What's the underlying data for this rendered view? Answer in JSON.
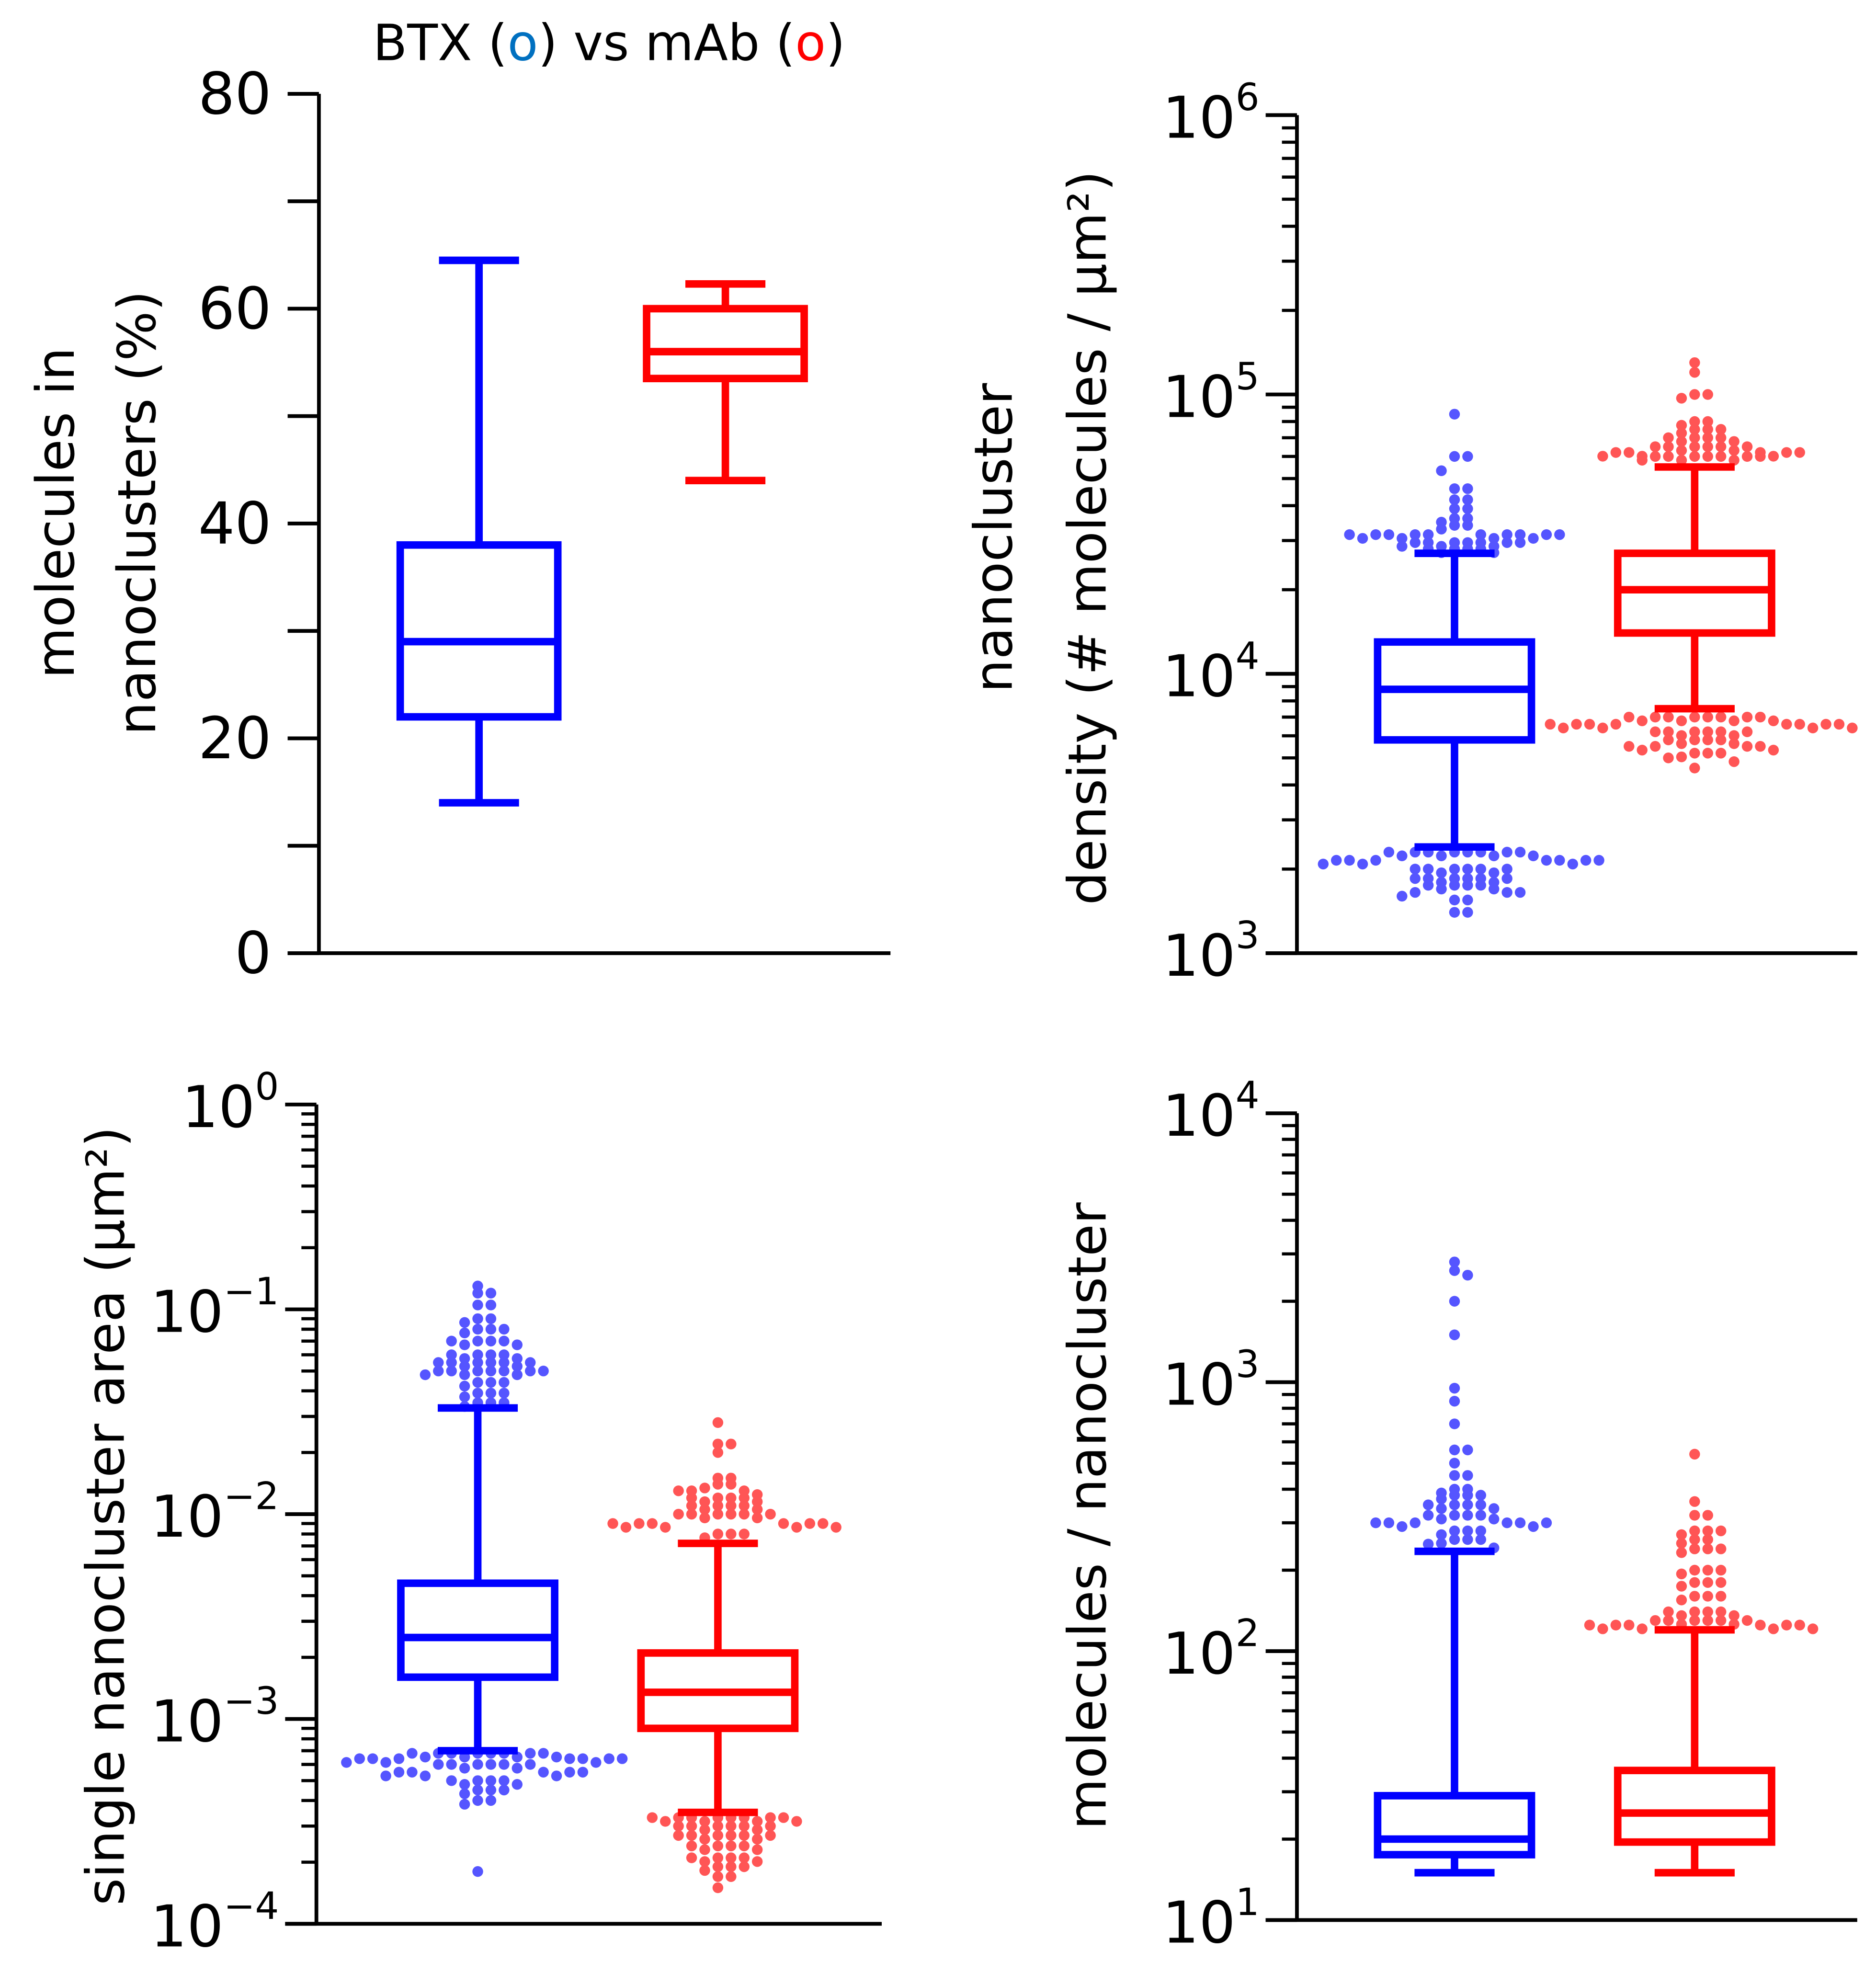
{
  "title": {
    "prefix": "BTX (",
    "o1": "o",
    "mid": ") vs mAb (",
    "o2": "o",
    "suffix": ")"
  },
  "colors": {
    "btx": "#0000FF",
    "mab": "#FF0000",
    "btx_dot": "#5555FF",
    "mab_dot": "#FF5555",
    "title_o_blue": "#0070C0"
  },
  "chart_data": [
    {
      "id": "A",
      "type": "box",
      "scale": "linear",
      "ylabel_lines": [
        "molecules in",
        "nanoclusters (%)"
      ],
      "ylim": [
        0,
        80
      ],
      "ticks": [
        0,
        20,
        40,
        60,
        80
      ],
      "minor_ticks": [
        10,
        30,
        50,
        70
      ],
      "series": [
        {
          "name": "BTX",
          "whisker_low": 14,
          "q1": 22,
          "median": 29,
          "q3": 38,
          "whisker_high": 64.5,
          "outliers": []
        },
        {
          "name": "mAb",
          "whisker_low": 44,
          "q1": 53.5,
          "median": 56,
          "q3": 60,
          "whisker_high": 62.3,
          "outliers": []
        }
      ]
    },
    {
      "id": "B",
      "type": "box",
      "scale": "log",
      "ylabel_lines": [
        "nanocluster",
        "density (# molecules / µm²)"
      ],
      "ylim_exp": [
        3,
        6
      ],
      "tick_exps": [
        "3",
        "4",
        "5",
        "6"
      ],
      "series": [
        {
          "name": "BTX",
          "whisker_low": 2400,
          "q1": 5800,
          "median": 8800,
          "q3": 13000,
          "whisker_high": 27000,
          "outliers": [
            [
              85000,
              1
            ],
            [
              60000,
              2
            ],
            [
              55000,
              1
            ],
            [
              46000,
              2
            ],
            [
              42000,
              2
            ],
            [
              39000,
              2
            ],
            [
              36000,
              3
            ],
            [
              34000,
              3
            ],
            [
              31500,
              14
            ],
            [
              29500,
              10
            ],
            [
              28000,
              6
            ],
            [
              2300,
              12
            ],
            [
              2150,
              10
            ],
            [
              2000,
              8
            ],
            [
              1850,
              8
            ],
            [
              1750,
              6
            ],
            [
              1650,
              4
            ],
            [
              1550,
              2
            ],
            [
              1400,
              2
            ]
          ]
        },
        {
          "name": "mAb",
          "whisker_low": 7500,
          "q1": 14000,
          "median": 20000,
          "q3": 27000,
          "whisker_high": 55000,
          "outliers": [
            [
              130000,
              1
            ],
            [
              120000,
              1
            ],
            [
              100000,
              3
            ],
            [
              80000,
              3
            ],
            [
              75000,
              4
            ],
            [
              70000,
              6
            ],
            [
              65000,
              8
            ],
            [
              62000,
              8
            ],
            [
              60000,
              10
            ],
            [
              7000,
              12
            ],
            [
              6600,
              12
            ],
            [
              6200,
              8
            ],
            [
              5800,
              6
            ],
            [
              5500,
              6
            ],
            [
              5200,
              4
            ],
            [
              5000,
              2
            ],
            [
              4600,
              1
            ]
          ]
        }
      ]
    },
    {
      "id": "C",
      "type": "box",
      "scale": "log",
      "ylabel_lines": [
        "single nanocluster area (µm²)"
      ],
      "ylim_exp": [
        -4,
        0
      ],
      "tick_exps": [
        "−4",
        "−3",
        "−2",
        "−1",
        "0"
      ],
      "series": [
        {
          "name": "BTX",
          "whisker_low": 0.0007,
          "q1": 0.0016,
          "median": 0.0025,
          "q3": 0.0046,
          "whisker_high": 0.033,
          "outliers": [
            [
              0.13,
              1
            ],
            [
              0.12,
              2
            ],
            [
              0.105,
              2
            ],
            [
              0.09,
              3
            ],
            [
              0.08,
              4
            ],
            [
              0.07,
              6
            ],
            [
              0.06,
              6
            ],
            [
              0.055,
              8
            ],
            [
              0.05,
              10
            ],
            [
              0.044,
              4
            ],
            [
              0.039,
              4
            ],
            [
              0.035,
              4
            ],
            [
              0.00068,
              12
            ],
            [
              0.00064,
              10
            ],
            [
              0.0006,
              8
            ],
            [
              0.00055,
              8
            ],
            [
              0.0005,
              6
            ],
            [
              0.00045,
              4
            ],
            [
              0.0004,
              3
            ],
            [
              0.00018,
              1
            ]
          ]
        },
        {
          "name": "mAb",
          "whisker_low": 0.00035,
          "q1": 0.0009,
          "median": 0.00135,
          "q3": 0.0021,
          "whisker_high": 0.0072,
          "outliers": [
            [
              0.028,
              1
            ],
            [
              0.022,
              2
            ],
            [
              0.02,
              1
            ],
            [
              0.015,
              2
            ],
            [
              0.014,
              3
            ],
            [
              0.013,
              4
            ],
            [
              0.012,
              6
            ],
            [
              0.011,
              6
            ],
            [
              0.01,
              8
            ],
            [
              0.009,
              10
            ],
            [
              0.008,
              4
            ],
            [
              0.00033,
              12
            ],
            [
              0.0003,
              8
            ],
            [
              0.00027,
              8
            ],
            [
              0.00024,
              6
            ],
            [
              0.00021,
              6
            ],
            [
              0.00019,
              4
            ],
            [
              0.00017,
              2
            ],
            [
              0.00015,
              1
            ]
          ]
        }
      ]
    },
    {
      "id": "D",
      "type": "box",
      "scale": "log",
      "ylabel_lines": [
        "molecules / nanocluster"
      ],
      "ylim_exp": [
        1,
        4
      ],
      "tick_exps": [
        "1",
        "2",
        "3",
        "4"
      ],
      "series": [
        {
          "name": "BTX",
          "whisker_low": 15,
          "q1": 17.5,
          "median": 20,
          "q3": 29,
          "whisker_high": 235,
          "outliers": [
            [
              2800,
              1
            ],
            [
              2600,
              1
            ],
            [
              2500,
              1
            ],
            [
              2000,
              1
            ],
            [
              1500,
              1
            ],
            [
              950,
              1
            ],
            [
              850,
              1
            ],
            [
              700,
              1
            ],
            [
              560,
              2
            ],
            [
              500,
              1
            ],
            [
              450,
              2
            ],
            [
              400,
              3
            ],
            [
              380,
              4
            ],
            [
              350,
              6
            ],
            [
              320,
              6
            ],
            [
              300,
              8
            ],
            [
              280,
              4
            ],
            [
              260,
              4
            ],
            [
              250,
              2
            ]
          ]
        },
        {
          "name": "mAb",
          "whisker_low": 15,
          "q1": 19.5,
          "median": 25,
          "q3": 36,
          "whisker_high": 120,
          "outliers": [
            [
              540,
              1
            ],
            [
              360,
              1
            ],
            [
              320,
              2
            ],
            [
              280,
              4
            ],
            [
              260,
              3
            ],
            [
              240,
              4
            ],
            [
              200,
              4
            ],
            [
              180,
              4
            ],
            [
              160,
              4
            ],
            [
              140,
              6
            ],
            [
              130,
              8
            ],
            [
              125,
              10
            ]
          ]
        }
      ]
    }
  ]
}
